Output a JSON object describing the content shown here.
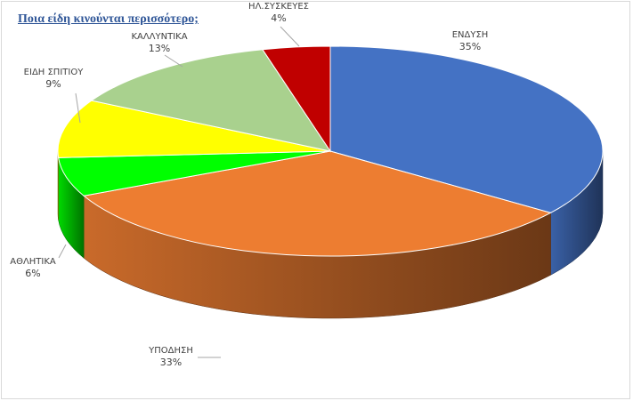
{
  "chart_data": {
    "type": "pie",
    "title": "Ποια είδη κινούνται περισσότερο;",
    "three_d": true,
    "series": [
      {
        "categories": [
          "ΕΝΔΥΣΗ",
          "ΥΠΟΔΗΣΗ",
          "ΑΘΛΗΤΙΚΑ",
          "ΕΙΔΗ ΣΠΙΤΙΟΥ",
          "ΚΑΛΛΥΝΤΙΚΑ",
          "ΗΛ.ΣΥΣΚΕΥΕΣ"
        ],
        "values": [
          35,
          33,
          6,
          9,
          13,
          4
        ],
        "value_labels": [
          "35%",
          "33%",
          "6%",
          "9%",
          "13%",
          "4%"
        ],
        "colors": [
          "#4472c4",
          "#ed7d31",
          "#00ff00",
          "#ffff00",
          "#a9d18e",
          "#c00000"
        ]
      }
    ],
    "legend": "none",
    "data_labels": "outside with leader lines"
  }
}
